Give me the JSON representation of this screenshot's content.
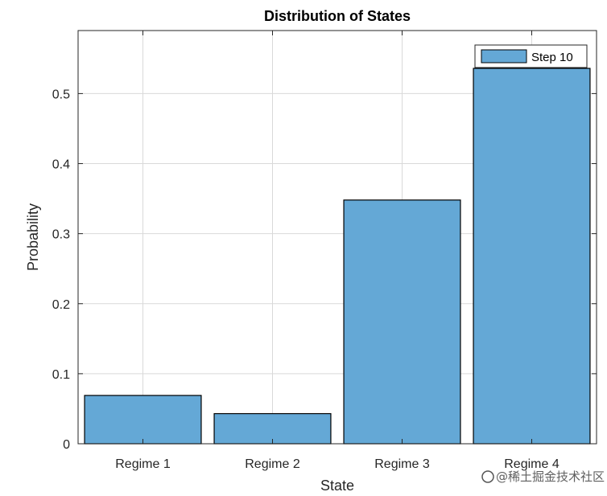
{
  "chart_data": {
    "type": "bar",
    "title": "Distribution of States",
    "xlabel": "State",
    "ylabel": "Probability",
    "categories": [
      "Regime 1",
      "Regime 2",
      "Regime 3",
      "Regime 4"
    ],
    "series": [
      {
        "name": "Step 10",
        "values": [
          0.069,
          0.043,
          0.348,
          0.536
        ],
        "color": "#64a8d6"
      }
    ],
    "ylim": [
      0,
      0.59
    ],
    "yticks": [
      0,
      0.1,
      0.2,
      0.3,
      0.4,
      0.5
    ],
    "ytick_labels": [
      "0",
      "0.1",
      "0.2",
      "0.3",
      "0.4",
      "0.5"
    ],
    "grid": true,
    "legend_position": "top-right"
  },
  "watermark": {
    "text": "@稀土掘金技术社区"
  }
}
